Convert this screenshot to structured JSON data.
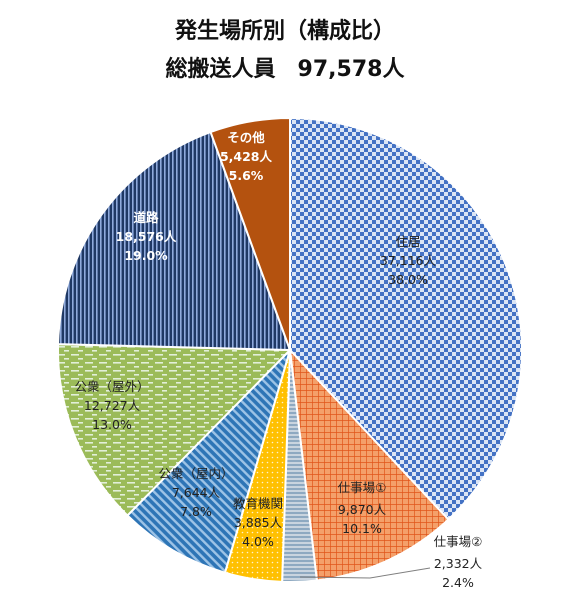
{
  "title_line1": "発生場所別（構成比）",
  "title_line2": "総搬送人員　97,578人",
  "chart_data": {
    "type": "pie",
    "title": "発生場所別（構成比） 総搬送人員 97,578人",
    "total": 97578,
    "slices": [
      {
        "name": "住居",
        "count_label": "37,116人",
        "pct_label": "38.0%",
        "value": 37116,
        "color": "#4472c4",
        "label_color": "#222222"
      },
      {
        "name": "仕事場①",
        "count_label": "9,870人",
        "pct_label": "10.1%",
        "value": 9870,
        "color": "#ed7d31",
        "label_color": "#222222"
      },
      {
        "name": "仕事場②",
        "count_label": "2,332人",
        "pct_label": "2.4%",
        "value": 2332,
        "color": "#8ea9c1",
        "label_color": "#222222"
      },
      {
        "name": "教育機関",
        "count_label": "3,885人",
        "pct_label": "4.0%",
        "value": 3885,
        "color": "#ffc000",
        "label_color": "#222222"
      },
      {
        "name": "公衆（屋内）",
        "count_label": "7,644人",
        "pct_label": "7.8%",
        "value": 7644,
        "color": "#2e75b6",
        "label_color": "#222222"
      },
      {
        "name": "公衆（屋外）",
        "count_label": "12,727人",
        "pct_label": "13.0%",
        "value": 12727,
        "color": "#9bbb59",
        "label_color": "#222222"
      },
      {
        "name": "道路",
        "count_label": "18,576人",
        "pct_label": "19.0%",
        "value": 18576,
        "color": "#2f5496",
        "label_color": "#ffffff"
      },
      {
        "name": "その他",
        "count_label": "5,428人",
        "pct_label": "5.6%",
        "value": 5428,
        "color": "#b4520f",
        "label_color": "#ffffff"
      }
    ]
  }
}
